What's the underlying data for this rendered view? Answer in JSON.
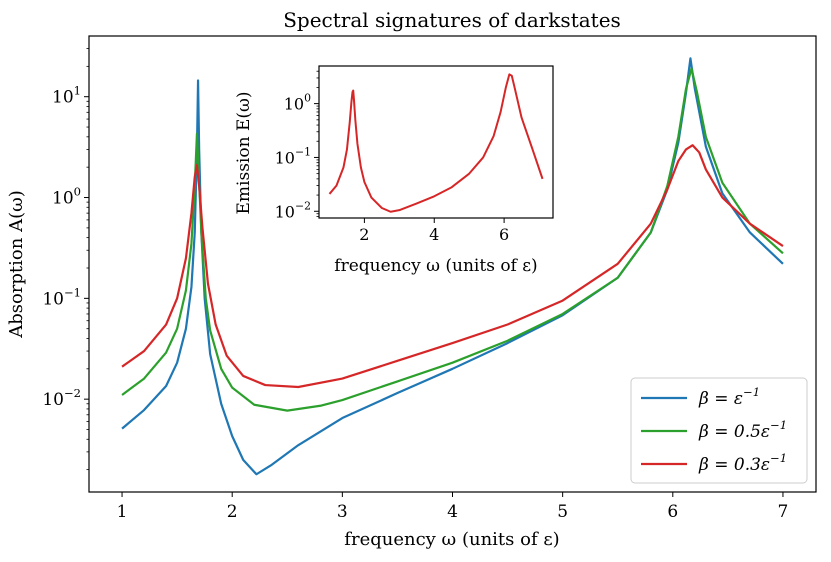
{
  "chart_data": [
    {
      "id": "main",
      "type": "line",
      "title": "Spectral signatures of darkstates",
      "xlabel": "frequency ω (units of ε)",
      "ylabel": "Absorption A(ω)",
      "xlim": [
        0.7,
        7.3
      ],
      "ylim": [
        0.0012,
        40
      ],
      "yscale": "log",
      "xticks": [
        1,
        2,
        3,
        4,
        5,
        6,
        7
      ],
      "xtick_labels": [
        "1",
        "2",
        "3",
        "4",
        "5",
        "6",
        "7"
      ],
      "yticks": [
        0.01,
        0.1,
        1,
        10
      ],
      "ytick_labels": [
        "10",
        "10",
        "10",
        "10"
      ],
      "ytick_exponents": [
        "−2",
        "−1",
        "0",
        "1"
      ],
      "legend_position": "bottom-right",
      "series": [
        {
          "name": "β = ε⁻¹",
          "legend_base": "β = ε",
          "legend_exp": "−1",
          "color": "#1f77b4",
          "x": [
            1.0,
            1.2,
            1.4,
            1.5,
            1.58,
            1.63,
            1.66,
            1.68,
            1.69,
            1.7,
            1.72,
            1.75,
            1.8,
            1.9,
            2.0,
            2.1,
            2.22,
            2.35,
            2.6,
            3.0,
            3.5,
            4.0,
            4.5,
            5.0,
            5.5,
            5.8,
            5.95,
            6.05,
            6.12,
            6.16,
            6.2,
            6.3,
            6.45,
            6.7,
            7.0
          ],
          "y": [
            0.0051,
            0.0078,
            0.0135,
            0.023,
            0.05,
            0.13,
            0.45,
            3.0,
            14.5,
            3.0,
            0.45,
            0.1,
            0.028,
            0.009,
            0.0043,
            0.0025,
            0.0018,
            0.0022,
            0.0035,
            0.0065,
            0.0115,
            0.02,
            0.036,
            0.068,
            0.16,
            0.45,
            1.2,
            3.5,
            11.0,
            24.0,
            12.0,
            3.2,
            1.1,
            0.45,
            0.22
          ]
        },
        {
          "name": "β = 0.5ε⁻¹",
          "legend_base": "β = 0.5ε",
          "legend_exp": "−1",
          "color": "#2ca02c",
          "x": [
            1.0,
            1.2,
            1.4,
            1.5,
            1.58,
            1.63,
            1.66,
            1.68,
            1.7,
            1.72,
            1.76,
            1.8,
            1.9,
            2.0,
            2.2,
            2.5,
            2.8,
            3.0,
            3.5,
            4.0,
            4.5,
            5.0,
            5.5,
            5.8,
            5.95,
            6.05,
            6.12,
            6.17,
            6.22,
            6.3,
            6.45,
            6.7,
            7.0
          ],
          "y": [
            0.011,
            0.016,
            0.029,
            0.05,
            0.12,
            0.35,
            1.3,
            4.3,
            1.4,
            0.45,
            0.1,
            0.048,
            0.02,
            0.013,
            0.0088,
            0.0077,
            0.0086,
            0.0098,
            0.015,
            0.023,
            0.038,
            0.07,
            0.16,
            0.45,
            1.3,
            4.0,
            12.0,
            19.0,
            11.0,
            4.0,
            1.4,
            0.55,
            0.28
          ]
        },
        {
          "name": "β = 0.3ε⁻¹",
          "legend_base": "β = 0.3ε",
          "legend_exp": "−1",
          "color": "#d62728",
          "x": [
            1.0,
            1.2,
            1.4,
            1.5,
            1.58,
            1.63,
            1.66,
            1.68,
            1.7,
            1.73,
            1.78,
            1.85,
            1.95,
            2.1,
            2.3,
            2.6,
            3.0,
            3.5,
            4.0,
            4.5,
            5.0,
            5.5,
            5.8,
            5.95,
            6.05,
            6.12,
            6.18,
            6.24,
            6.3,
            6.45,
            6.7,
            7.0
          ],
          "y": [
            0.021,
            0.03,
            0.055,
            0.1,
            0.25,
            0.7,
            1.6,
            2.1,
            1.3,
            0.5,
            0.14,
            0.055,
            0.027,
            0.017,
            0.0138,
            0.0132,
            0.016,
            0.024,
            0.036,
            0.055,
            0.095,
            0.22,
            0.55,
            1.2,
            2.3,
            3.0,
            3.3,
            2.8,
            1.9,
            1.0,
            0.55,
            0.33
          ]
        }
      ]
    },
    {
      "id": "inset",
      "type": "line",
      "xlabel": "frequency ω (units of ε)",
      "ylabel": "Emission E(ω)",
      "xlim": [
        0.7,
        7.4
      ],
      "ylim": [
        0.0075,
        5
      ],
      "yscale": "log",
      "xticks": [
        2,
        4,
        6
      ],
      "xtick_labels": [
        "2",
        "4",
        "6"
      ],
      "yticks": [
        0.01,
        0.1,
        1
      ],
      "ytick_labels": [
        "10",
        "10",
        "10"
      ],
      "ytick_exponents": [
        "−2",
        "−1",
        "0"
      ],
      "series": [
        {
          "name": "emission",
          "color": "#d62728",
          "x": [
            1.0,
            1.2,
            1.4,
            1.5,
            1.58,
            1.63,
            1.66,
            1.68,
            1.7,
            1.74,
            1.8,
            1.9,
            2.0,
            2.2,
            2.5,
            2.75,
            3.0,
            3.5,
            4.0,
            4.5,
            5.0,
            5.4,
            5.7,
            5.9,
            6.05,
            6.15,
            6.22,
            6.3,
            6.5,
            6.8,
            7.1
          ],
          "y": [
            0.021,
            0.03,
            0.065,
            0.14,
            0.45,
            1.1,
            1.65,
            1.75,
            1.2,
            0.5,
            0.18,
            0.065,
            0.035,
            0.018,
            0.0115,
            0.0098,
            0.0105,
            0.014,
            0.019,
            0.028,
            0.05,
            0.1,
            0.25,
            0.7,
            2.0,
            3.5,
            3.3,
            2.0,
            0.55,
            0.15,
            0.04
          ]
        }
      ]
    }
  ]
}
